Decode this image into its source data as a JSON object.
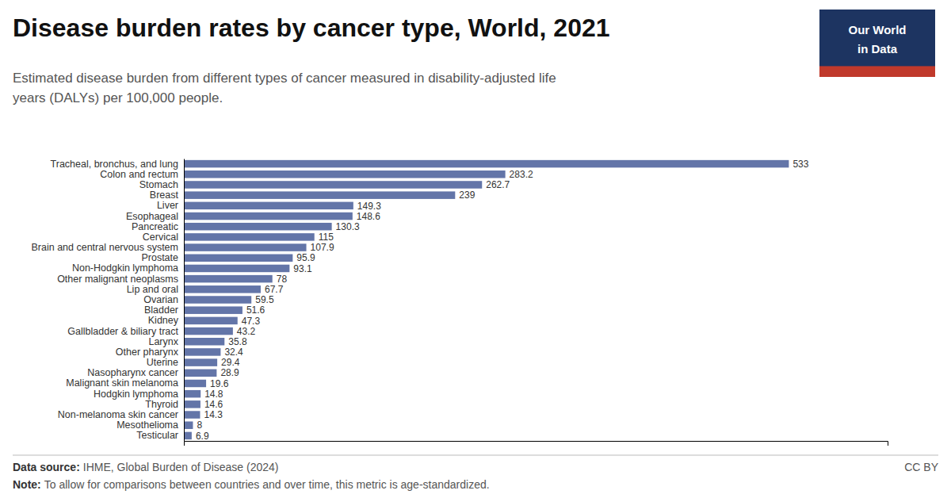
{
  "chart_data": {
    "type": "bar",
    "orientation": "horizontal",
    "title": "Disease burden rates by cancer type, World, 2021",
    "subtitle": "Estimated disease burden from different types of cancer measured in disability-adjusted life\nyears (DALYs) per 100,000 people.",
    "categories": [
      "Tracheal, bronchus, and lung",
      "Colon and rectum",
      "Stomach",
      "Breast",
      "Liver",
      "Esophageal",
      "Pancreatic",
      "Cervical",
      "Brain and central nervous system",
      "Prostate",
      "Non-Hodgkin lymphoma",
      "Other malignant neoplasms",
      "Lip and oral",
      "Ovarian",
      "Bladder",
      "Kidney",
      "Gallbladder & biliary tract",
      "Larynx",
      "Other pharynx",
      "Uterine",
      "Nasopharynx cancer",
      "Malignant skin melanoma",
      "Hodgkin lymphoma",
      "Thyroid",
      "Non-melanoma skin cancer",
      "Mesothelioma",
      "Testicular"
    ],
    "values": [
      533,
      283.2,
      262.7,
      239,
      149.3,
      148.6,
      130.3,
      115,
      107.9,
      95.9,
      93.1,
      78,
      67.7,
      59.5,
      51.6,
      47.3,
      43.2,
      35.8,
      32.4,
      29.4,
      28.9,
      19.6,
      14.8,
      14.6,
      14.3,
      8,
      6.9
    ],
    "color": "#6375a8",
    "xlim": [
      0,
      620
    ],
    "xticks": [],
    "data_labels": true,
    "tick_labels": "y",
    "grid": false,
    "source": {
      "label": "Data source:",
      "text": "IHME, Global Burden of Disease (2024)"
    },
    "note": {
      "label": "Note:",
      "text": "To allow for comparisons between countries and over time, this metric is age-standardized."
    },
    "license": "CC BY",
    "logo": {
      "lines": [
        "Our World",
        "in Data"
      ],
      "color": "#1d3461",
      "stripe_color": "#c0392b"
    }
  }
}
